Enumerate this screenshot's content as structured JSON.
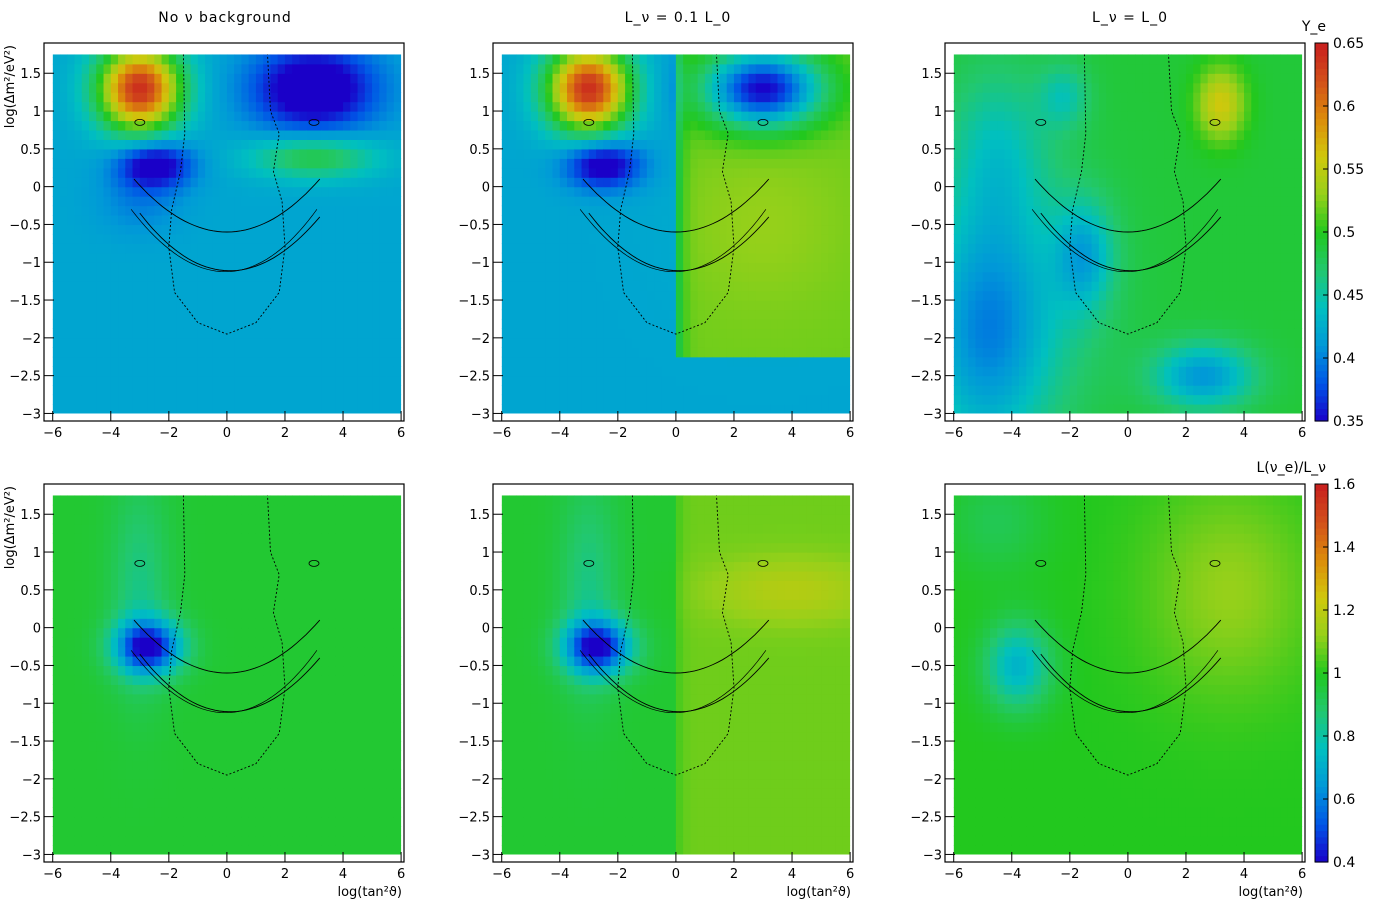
{
  "column_titles": [
    "No ν background",
    "L_ν = 0.1 L_0",
    "L_ν = L_0"
  ],
  "colorbars": [
    {
      "label": "Y_e",
      "ticks": [
        "0.65",
        "0.6",
        "0.55",
        "0.5",
        "0.45",
        "0.4",
        "0.35"
      ],
      "range": [
        0.35,
        0.65
      ]
    },
    {
      "label": "L(ν_e)/L_ν",
      "ticks": [
        "1.6",
        "1.4",
        "1.2",
        "1",
        "0.8",
        "0.6",
        "0.4"
      ],
      "range": [
        0.4,
        1.6
      ]
    }
  ],
  "colors": {
    "palette": [
      "#1a00c8",
      "#0055e6",
      "#0098d8",
      "#00c0c0",
      "#22c86e",
      "#22c81e",
      "#96d01a",
      "#d0c80c",
      "#dc8c0a",
      "#d2501a",
      "#c81e1e"
    ]
  },
  "chart_data": [
    {
      "type": "heatmap",
      "row": 0,
      "col": 0,
      "title": "No ν background",
      "xlabel": "",
      "ylabel": "log(Δm²/eV²)",
      "x": [
        -6,
        6
      ],
      "y": [
        -3,
        1.75
      ],
      "xlim": [
        -6.3,
        6.1
      ],
      "ylim": [
        -3.1,
        1.9
      ],
      "xticks": [
        "−6",
        "−4",
        "−2",
        "0",
        "2",
        "4",
        "6"
      ],
      "yticks": [
        "1.5",
        "1",
        "0.5",
        "0",
        "−0.5",
        "−1",
        "−1.5",
        "−2",
        "−2.5",
        "−3"
      ],
      "scale": [
        0.35,
        0.65
      ],
      "background": 0.42,
      "regions": [
        {
          "x": -3,
          "y": 1.3,
          "sx": 1.0,
          "sy": 0.4,
          "v": 0.22
        },
        {
          "x": 3.0,
          "y": 1.3,
          "sx": 1.5,
          "sy": 0.4,
          "v": -0.1
        },
        {
          "x": -2.5,
          "y": 0.3,
          "sx": 0.9,
          "sy": 0.22,
          "v": -0.09
        },
        {
          "x": 3.0,
          "y": 0.4,
          "sx": 1.5,
          "sy": 0.2,
          "v": 0.07
        },
        {
          "x": -3.0,
          "y": -0.2,
          "sx": 1.0,
          "sy": 0.3,
          "v": -0.02
        }
      ]
    },
    {
      "type": "heatmap",
      "row": 0,
      "col": 1,
      "title": "L_ν = 0.1 L_0",
      "xlabel": "",
      "ylabel": "",
      "x": [
        -6,
        6
      ],
      "y": [
        -3,
        1.75
      ],
      "xlim": [
        -6.3,
        6.1
      ],
      "ylim": [
        -3.1,
        1.9
      ],
      "xticks": [
        "−6",
        "−4",
        "−2",
        "0",
        "2",
        "4",
        "6"
      ],
      "yticks": [
        "1.5",
        "1",
        "0.5",
        "0",
        "−0.5",
        "−1",
        "−1.5",
        "−2",
        "−2.5",
        "−3"
      ],
      "scale": [
        0.35,
        0.65
      ],
      "background": 0.42,
      "right_region": {
        "x0": 0,
        "ymin": -2.3,
        "v": 0.52
      },
      "regions": [
        {
          "x": -3,
          "y": 1.3,
          "sx": 1.0,
          "sy": 0.4,
          "v": 0.22
        },
        {
          "x": 3.0,
          "y": 1.3,
          "sx": 1.4,
          "sy": 0.35,
          "v": -0.17
        },
        {
          "x": -2.5,
          "y": 0.3,
          "sx": 0.9,
          "sy": 0.22,
          "v": -0.09
        },
        {
          "x": 3.0,
          "y": -0.5,
          "sx": 2.0,
          "sy": 0.8,
          "v": 0.01
        }
      ]
    },
    {
      "type": "heatmap",
      "row": 0,
      "col": 2,
      "title": "L_ν = L_0",
      "xlabel": "",
      "ylabel": "",
      "x": [
        -6,
        6
      ],
      "y": [
        -3,
        1.75
      ],
      "xlim": [
        -6.3,
        6.1
      ],
      "ylim": [
        -3.1,
        1.9
      ],
      "xticks": [
        "−6",
        "−4",
        "−2",
        "0",
        "2",
        "4",
        "6"
      ],
      "yticks": [
        "1.5",
        "1",
        "0.5",
        "0",
        "−0.5",
        "−1",
        "−1.5",
        "−2",
        "−2.5",
        "−3"
      ],
      "scale": [
        0.35,
        0.65
      ],
      "background": 0.49,
      "regions": [
        {
          "x": -5,
          "y": -2.0,
          "sx": 1.5,
          "sy": 1.2,
          "v": -0.07
        },
        {
          "x": -3.5,
          "y": -1.5,
          "sx": 2.0,
          "sy": 1.2,
          "v": -0.03
        },
        {
          "x": -1.5,
          "y": -0.9,
          "sx": 0.7,
          "sy": 0.5,
          "v": -0.06
        },
        {
          "x": 2.6,
          "y": -2.5,
          "sx": 1.2,
          "sy": 0.3,
          "v": -0.08
        },
        {
          "x": 3.2,
          "y": 1.1,
          "sx": 0.6,
          "sy": 0.35,
          "v": 0.07
        },
        {
          "x": -2.2,
          "y": 1.2,
          "sx": 0.6,
          "sy": 0.3,
          "v": -0.04
        },
        {
          "x": -4.5,
          "y": 0.5,
          "sx": 1.2,
          "sy": 0.8,
          "v": -0.04
        }
      ]
    },
    {
      "type": "heatmap",
      "row": 1,
      "col": 0,
      "title": "",
      "xlabel": "log(tan²ϑ)",
      "ylabel": "log(Δm²/eV²)",
      "x": [
        -6,
        6
      ],
      "y": [
        -3,
        1.75
      ],
      "xlim": [
        -6.3,
        6.1
      ],
      "ylim": [
        -3.1,
        1.9
      ],
      "xticks": [
        "−6",
        "−4",
        "−2",
        "0",
        "2",
        "4",
        "6"
      ],
      "yticks": [
        "1.5",
        "1",
        "0.5",
        "0",
        "−0.5",
        "−1",
        "−1.5",
        "−2",
        "−2.5",
        "−3"
      ],
      "scale": [
        0.4,
        1.6
      ],
      "background": 0.97,
      "regions": [
        {
          "x": -2.7,
          "y": -0.25,
          "sx": 0.8,
          "sy": 0.25,
          "v": -0.55
        },
        {
          "x": -3.0,
          "y": 0.5,
          "sx": 0.7,
          "sy": 1.0,
          "v": -0.12
        }
      ]
    },
    {
      "type": "heatmap",
      "row": 1,
      "col": 1,
      "title": "",
      "xlabel": "log(tan²ϑ)",
      "ylabel": "",
      "x": [
        -6,
        6
      ],
      "y": [
        -3,
        1.75
      ],
      "xlim": [
        -6.3,
        6.1
      ],
      "ylim": [
        -3.1,
        1.9
      ],
      "xticks": [
        "−6",
        "−4",
        "−2",
        "0",
        "2",
        "4",
        "6"
      ],
      "yticks": [
        "1.5",
        "1",
        "0.5",
        "0",
        "−0.5",
        "−1",
        "−1.5",
        "−2",
        "−2.5",
        "−3"
      ],
      "scale": [
        0.4,
        1.6
      ],
      "background": 0.97,
      "right_region": {
        "x0": 0,
        "ymin": -3.0,
        "v": 1.08
      },
      "regions": [
        {
          "x": -2.7,
          "y": -0.25,
          "sx": 0.8,
          "sy": 0.25,
          "v": -0.55
        },
        {
          "x": -3.0,
          "y": 0.5,
          "sx": 0.7,
          "sy": 1.0,
          "v": -0.12
        },
        {
          "x": 4.0,
          "y": 0.5,
          "sx": 2.0,
          "sy": 0.3,
          "v": 0.1
        }
      ]
    },
    {
      "type": "heatmap",
      "row": 1,
      "col": 2,
      "title": "",
      "xlabel": "log(tan²ϑ)",
      "ylabel": "",
      "x": [
        -6,
        6
      ],
      "y": [
        -3,
        1.75
      ],
      "xlim": [
        -6.3,
        6.1
      ],
      "ylim": [
        -3.1,
        1.9
      ],
      "xticks": [
        "−6",
        "−4",
        "−2",
        "0",
        "2",
        "4",
        "6"
      ],
      "yticks": [
        "1.5",
        "1",
        "0.5",
        "0",
        "−0.5",
        "−1",
        "−1.5",
        "−2",
        "−2.5",
        "−3"
      ],
      "scale": [
        0.4,
        1.6
      ],
      "background": 1.0,
      "regions": [
        {
          "x": -3.8,
          "y": -0.5,
          "sx": 0.8,
          "sy": 0.4,
          "v": -0.28
        },
        {
          "x": 3.5,
          "y": 0.5,
          "sx": 2.0,
          "sy": 1.0,
          "v": 0.12
        },
        {
          "x": -4.5,
          "y": 1.4,
          "sx": 1.2,
          "sy": 0.5,
          "v": -0.08
        }
      ]
    }
  ]
}
